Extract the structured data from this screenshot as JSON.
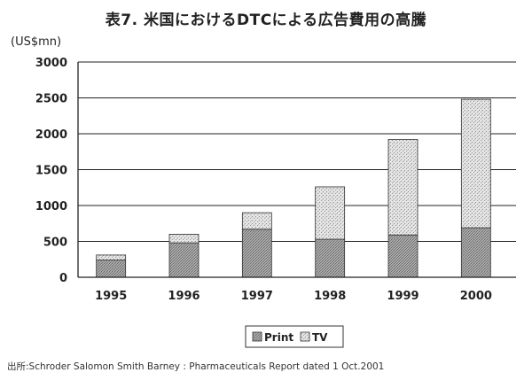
{
  "chart_data": {
    "type": "bar",
    "stacked": true,
    "title": "表7. 米国におけるDTCによる広告費用の高騰",
    "ylabel": "(US$mn)",
    "xlabel": "",
    "categories": [
      "1995",
      "1996",
      "1997",
      "1998",
      "1999",
      "2000"
    ],
    "series": [
      {
        "name": "Print",
        "values": [
          240,
          480,
          670,
          530,
          590,
          690
        ]
      },
      {
        "name": "TV",
        "values": [
          70,
          120,
          230,
          730,
          1330,
          1790
        ]
      }
    ],
    "ylim": [
      0,
      3000
    ],
    "yticks": [
      0,
      500,
      1000,
      1500,
      2000,
      2500,
      3000
    ],
    "grid": "horizontal",
    "legend": "bottom-center"
  },
  "source": "出所:Schroder Salomon Smith Barney : Pharmaceuticals Report dated 1 Oct.2001",
  "colors": {
    "print_fill": "#9a9a9a",
    "tv_fill": "#d6d6d6",
    "axis": "#222222",
    "grid": "#222222"
  }
}
